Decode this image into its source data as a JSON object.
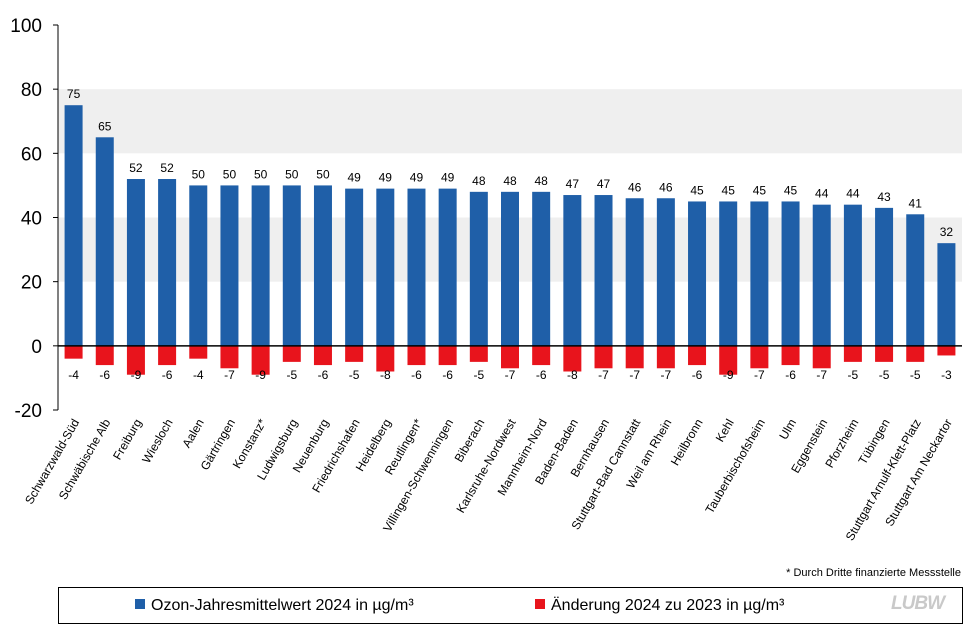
{
  "chart_data": {
    "type": "bar",
    "title": "",
    "xlabel": "",
    "ylabel": "",
    "ylim": [
      -20,
      100
    ],
    "yticks": [
      100,
      80,
      60,
      40,
      20,
      0,
      -20
    ],
    "categories": [
      "Schwarzwald-Süd",
      "Schwäbische Alb",
      "Freiburg",
      "Wiesloch",
      "Aalen",
      "Gärtringen",
      "Konstanz*",
      "Ludwigsburg",
      "Neuenburg",
      "Friedrichshafen",
      "Heidelberg",
      "Reutlingen*",
      "Villingen-Schwenningen",
      "Biberach",
      "Karlsruhe-Nordwest",
      "Mannheim-Nord",
      "Baden-Baden",
      "Bernhausen",
      "Stuttgart-Bad Cannstatt",
      "Weil am Rhein",
      "Heilbronn",
      "Kehl",
      "Tauberbischofsheim",
      "Ulm",
      "Eggenstein",
      "Pforzheim",
      "Tübingen",
      "Stuttgart Arnulf-Klett-Platz",
      "Stuttgart Am Neckartor"
    ],
    "series": [
      {
        "name": "Ozon-Jahresmittelwert 2024 in µg/m³",
        "color": "#1f5fa8",
        "values": [
          75,
          65,
          52,
          52,
          50,
          50,
          50,
          50,
          50,
          49,
          49,
          49,
          49,
          48,
          48,
          48,
          47,
          47,
          46,
          46,
          45,
          45,
          45,
          45,
          44,
          44,
          43,
          41,
          32
        ]
      },
      {
        "name": "Änderung 2024 zu 2023 in µg/m³",
        "color": "#e8141c",
        "values": [
          -4,
          -6,
          -9,
          -6,
          -4,
          -7,
          -9,
          -5,
          -6,
          -5,
          -8,
          -6,
          -6,
          -5,
          -7,
          -6,
          -8,
          -7,
          -7,
          -7,
          -6,
          -9,
          -7,
          -6,
          -7,
          -5,
          -5,
          -5,
          -3
        ]
      }
    ],
    "footnote": "* Durch Dritte finanzierte Messstelle"
  },
  "logo_text": "LUBW"
}
